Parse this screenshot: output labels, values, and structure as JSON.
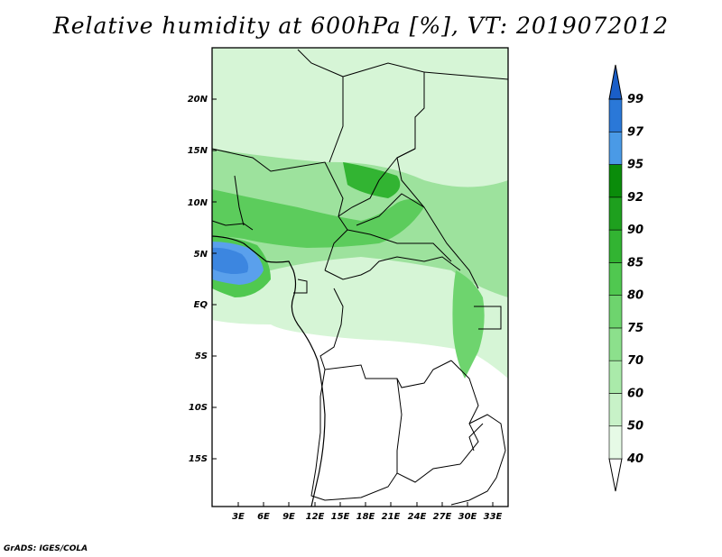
{
  "title": "Relative humidity at 600hPa [%], VT: 2019072012",
  "credit": "GrADS: IGES/COLA",
  "lat_labels": [
    "20N",
    "15N",
    "10N",
    "5N",
    "EQ",
    "5S",
    "10S",
    "15S"
  ],
  "lon_labels": [
    "3E",
    "6E",
    "9E",
    "12E",
    "15E",
    "18E",
    "21E",
    "24E",
    "27E",
    "30E",
    "33E"
  ],
  "colorbar": {
    "levels": [
      "40",
      "50",
      "60",
      "70",
      "75",
      "80",
      "85",
      "90",
      "92",
      "95",
      "97",
      "99"
    ],
    "colors": [
      "#ffffff",
      "#e6fae6",
      "#c8f2c8",
      "#aaeaaa",
      "#8ce08c",
      "#6ed46e",
      "#50c850",
      "#32b432",
      "#1ea01e",
      "#0a8c0a",
      "#4a9ae6",
      "#2a78d8",
      "#1a5ec8"
    ]
  },
  "map_colors": {
    "ocean_wet": "#3c86e0",
    "ocean_moist": "#5aa0ec"
  }
}
